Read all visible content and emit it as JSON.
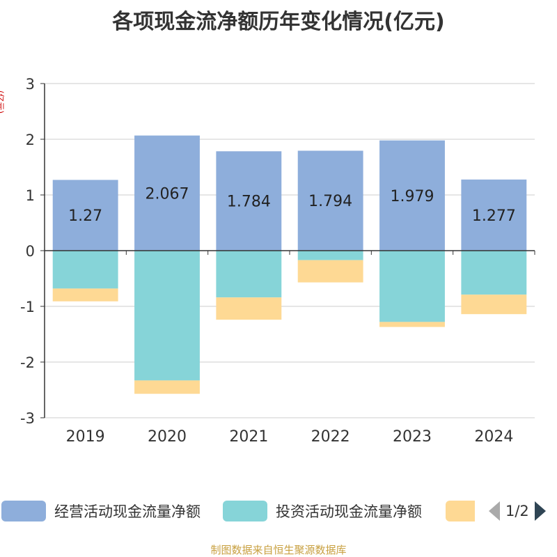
{
  "chart_data": {
    "type": "bar",
    "stacked": true,
    "title": "各项现金流净额历年变化情况(亿元)",
    "ylabel": "(亿元)",
    "xlabel": "",
    "categories": [
      "2019",
      "2020",
      "2021",
      "2022",
      "2023",
      "2024"
    ],
    "ylim": [
      -3,
      3
    ],
    "yticks": [
      3,
      2,
      1,
      0,
      -1,
      -2,
      -3
    ],
    "series": [
      {
        "name": "经营活动现金流量净额",
        "color": "#8eaedb",
        "values": [
          1.27,
          2.067,
          1.784,
          1.794,
          1.979,
          1.277
        ],
        "labels": [
          "1.27",
          "2.067",
          "1.784",
          "1.794",
          "1.979",
          "1.277"
        ]
      },
      {
        "name": "投资活动现金流量净额",
        "color": "#86d4d8",
        "values": [
          -0.68,
          -2.33,
          -0.84,
          -0.17,
          -1.28,
          -0.79
        ]
      },
      {
        "name": "",
        "color": "#fed994",
        "values": [
          -0.23,
          -0.24,
          -0.4,
          -0.4,
          -0.09,
          -0.35
        ]
      }
    ]
  },
  "legend": {
    "items": [
      {
        "label": "经营活动现金流量净额",
        "color": "#8eaedb"
      },
      {
        "label": "投资活动现金流量净额",
        "color": "#86d4d8"
      },
      {
        "label": "",
        "color": "#fed994"
      }
    ],
    "page": "1/2"
  },
  "source": "制图数据来自恒生聚源数据库"
}
